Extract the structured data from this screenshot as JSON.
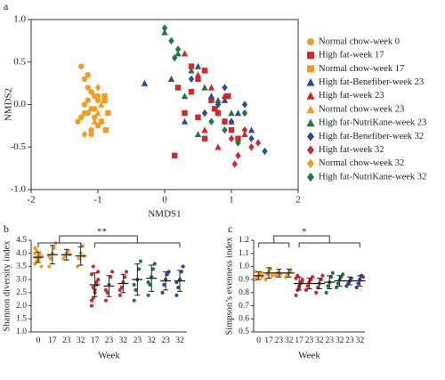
{
  "chart_data": [
    {
      "type": "scatter",
      "panel_label": "a",
      "x_label": "NMDS1",
      "y_label": "NMDS2",
      "xlim": [
        -2,
        2
      ],
      "xticks": [
        -2,
        -1,
        0,
        1,
        2
      ],
      "ylim": [
        -1,
        1
      ],
      "yticks": [
        {
          "value": -1,
          "label": "-1.0"
        },
        -0.5,
        {
          "value": 0,
          "label": "0.0"
        },
        0.5,
        {
          "value": 1,
          "label": "1.0"
        }
      ],
      "legend": "right",
      "series": [
        {
          "name": "Normal chow-week 0",
          "color": "#f39c1f",
          "marker": "circle",
          "x": [
            -1.25,
            -1.2,
            -1.15,
            -1.1,
            -1.05,
            -1.0,
            -1.2,
            -1.1,
            -1.15,
            -1.05,
            -1.3,
            -1.0,
            -1.1,
            -1.2,
            -1.15,
            -1.05,
            -1.25,
            -1.1,
            -1.0,
            -1.15
          ],
          "y": [
            0.45,
            0.3,
            0.2,
            0.15,
            0.1,
            0.05,
            0.0,
            -0.05,
            -0.1,
            -0.15,
            -0.2,
            -0.25,
            -0.3,
            -0.1,
            0.05,
            -0.05,
            -0.15,
            -0.35,
            0.1,
            0.35
          ]
        },
        {
          "name": "High fat-week 17",
          "color": "#d7262b",
          "marker": "square",
          "x": [
            0.2,
            0.4,
            0.5,
            0.6,
            0.7,
            0.8,
            0.9,
            1.0,
            1.1,
            0.3,
            0.5,
            0.75,
            0.95,
            0.4,
            0.15,
            0.6
          ],
          "y": [
            0.2,
            0.15,
            0.3,
            0.4,
            0.05,
            -0.1,
            -0.2,
            -0.3,
            -0.4,
            -0.1,
            -0.15,
            -0.05,
            0.1,
            0.45,
            -0.6,
            -0.4
          ]
        },
        {
          "name": "Normal chow-week 17",
          "color": "#f39c1f",
          "marker": "square",
          "x": [
            -0.9,
            -0.85,
            -0.95,
            -0.9,
            -0.88
          ],
          "y": [
            0.05,
            -0.1,
            -0.2,
            0.1,
            -0.3
          ]
        },
        {
          "name": "High fat-Benefiber-week 23",
          "color": "#2e4b9b",
          "marker": "triangle",
          "x": [
            -0.3,
            0.1,
            0.3,
            0.7,
            0.9,
            1.1,
            0.5,
            1.3
          ],
          "y": [
            0.25,
            0.3,
            -0.2,
            0.1,
            0.05,
            -0.1,
            0.45,
            -0.3
          ]
        },
        {
          "name": "High fat-week 23",
          "color": "#d7262b",
          "marker": "triangle",
          "x": [
            0.3,
            0.5,
            0.7,
            0.9,
            1.0,
            1.2,
            0.6,
            0.8
          ],
          "y": [
            0.6,
            0.35,
            0.2,
            0.1,
            -0.2,
            -0.35,
            -0.3,
            -0.5
          ]
        },
        {
          "name": "Normal chow-week 23",
          "color": "#f39c1f",
          "marker": "triangle",
          "x": [
            -1.0,
            -0.95,
            -1.05
          ],
          "y": [
            -0.1,
            0.0,
            -0.2
          ]
        },
        {
          "name": "High fat-NutriKane-week 23",
          "color": "#1b7a3d",
          "marker": "triangle",
          "x": [
            0.0,
            0.2,
            0.4,
            0.6,
            0.8,
            1.0,
            0.5,
            0.3
          ],
          "y": [
            0.85,
            0.6,
            0.4,
            0.2,
            0.05,
            -0.1,
            -0.35,
            0.1
          ]
        },
        {
          "name": "High fat-Benefiber-week 32",
          "color": "#2e4b9b",
          "marker": "diamond",
          "x": [
            0.4,
            0.6,
            0.8,
            1.0,
            1.2,
            1.3,
            0.9,
            1.5
          ],
          "y": [
            0.3,
            -0.1,
            0.0,
            -0.2,
            0.0,
            -0.4,
            0.2,
            -0.55
          ]
        },
        {
          "name": "High fat-week 32",
          "color": "#d7262b",
          "marker": "diamond",
          "x": [
            0.8,
            1.0,
            1.1,
            1.2,
            1.3,
            0.9,
            1.05,
            1.4
          ],
          "y": [
            -0.1,
            -0.4,
            -0.6,
            -0.3,
            -0.5,
            -0.2,
            -0.7,
            -0.45
          ]
        },
        {
          "name": "Normal chow-week 32",
          "color": "#f39c1f",
          "marker": "diamond",
          "x": [
            -1.2,
            -1.1,
            -1.0
          ],
          "y": [
            -0.35,
            -0.3,
            0.2
          ]
        },
        {
          "name": "High fat-NutriKane-week 32",
          "color": "#1b7a3d",
          "marker": "diamond",
          "x": [
            0.0,
            0.1,
            0.2,
            0.15,
            0.9,
            1.1,
            0.7,
            1.2
          ],
          "y": [
            0.9,
            0.75,
            0.65,
            0.55,
            -0.3,
            -0.45,
            -0.2,
            -0.1
          ]
        }
      ]
    },
    {
      "type": "dot",
      "panel_label": "b",
      "x_label": "Week",
      "y_label": "Shannon diversity index",
      "annotation": "**",
      "ylim": [
        1,
        4.5
      ],
      "yticks": [
        {
          "value": 1,
          "label": "1.0"
        },
        1.5,
        {
          "value": 2,
          "label": "2.0"
        },
        2.5,
        {
          "value": 3,
          "label": "3.0"
        },
        3.5,
        {
          "value": 4,
          "label": "4.0"
        },
        4.5
      ],
      "categories": [
        "0",
        "17",
        "23",
        "32",
        "17",
        "23",
        "32",
        "23",
        "32",
        "23",
        "32"
      ],
      "colors": [
        "#f39c1f",
        "#f39c1f",
        "#f39c1f",
        "#f39c1f",
        "#d7262b",
        "#d7262b",
        "#d7262b",
        "#1b7a3d",
        "#1b7a3d",
        "#2e4b9b",
        "#2e4b9b"
      ],
      "points": [
        [
          3.6,
          3.7,
          3.8,
          3.85,
          3.9,
          4.0,
          4.1,
          3.75,
          3.95,
          3.5,
          4.2,
          3.85
        ],
        [
          3.5,
          3.8,
          4.0,
          4.2,
          4.4,
          3.9
        ],
        [
          3.8,
          3.9,
          4.0,
          4.1,
          3.95
        ],
        [
          3.5,
          3.8,
          4.0,
          4.3,
          3.9
        ],
        [
          2.0,
          2.3,
          2.6,
          2.8,
          3.0,
          3.2,
          3.5,
          2.5,
          2.9,
          3.3,
          2.2,
          2.7
        ],
        [
          2.2,
          2.5,
          2.8,
          3.1,
          3.3,
          2.6
        ],
        [
          2.4,
          2.7,
          2.9,
          3.1,
          3.3,
          2.6
        ],
        [
          2.2,
          2.6,
          3.0,
          3.4,
          3.7,
          2.8
        ],
        [
          2.4,
          2.8,
          3.1,
          3.4,
          3.6,
          2.9
        ],
        [
          2.5,
          2.8,
          3.0,
          3.2,
          3.3
        ],
        [
          2.4,
          2.7,
          3.0,
          3.3,
          3.5,
          2.9
        ]
      ],
      "means": [
        3.85,
        3.95,
        3.95,
        3.9,
        2.8,
        2.75,
        2.85,
        3.0,
        3.05,
        2.95,
        2.95
      ],
      "sds": [
        0.2,
        0.35,
        0.2,
        0.35,
        0.45,
        0.4,
        0.35,
        0.6,
        0.5,
        0.35,
        0.4
      ]
    },
    {
      "type": "dot",
      "panel_label": "c",
      "x_label": "Week",
      "y_label": "Simpson’s evenness index",
      "annotation": "*",
      "ylim": [
        0.5,
        1.2
      ],
      "yticks": [
        0.5,
        0.6,
        0.7,
        0.8,
        0.9,
        {
          "value": 1,
          "label": "1.0"
        },
        1.1,
        1.2
      ],
      "categories": [
        "0",
        "17",
        "23",
        "32",
        "17",
        "23",
        "32",
        "23",
        "32",
        "23",
        "32"
      ],
      "colors": [
        "#f39c1f",
        "#f39c1f",
        "#f39c1f",
        "#f39c1f",
        "#d7262b",
        "#d7262b",
        "#d7262b",
        "#1b7a3d",
        "#1b7a3d",
        "#2e4b9b",
        "#2e4b9b"
      ],
      "points": [
        [
          0.9,
          0.92,
          0.93,
          0.94,
          0.95,
          0.96,
          0.91,
          0.93,
          0.95,
          0.92
        ],
        [
          0.9,
          0.94,
          0.96,
          0.98,
          0.93
        ],
        [
          0.93,
          0.95,
          0.96,
          0.94
        ],
        [
          0.92,
          0.94,
          0.96,
          0.97
        ],
        [
          0.78,
          0.82,
          0.85,
          0.87,
          0.89,
          0.91,
          0.93,
          0.84,
          0.88,
          0.9
        ],
        [
          0.82,
          0.85,
          0.88,
          0.9,
          0.92
        ],
        [
          0.8,
          0.84,
          0.87,
          0.9,
          0.93
        ],
        [
          0.8,
          0.85,
          0.88,
          0.92,
          0.95
        ],
        [
          0.84,
          0.87,
          0.9,
          0.92,
          0.94
        ],
        [
          0.85,
          0.87,
          0.89,
          0.91
        ],
        [
          0.84,
          0.87,
          0.9,
          0.93,
          0.92
        ]
      ],
      "means": [
        0.93,
        0.95,
        0.95,
        0.95,
        0.87,
        0.87,
        0.87,
        0.88,
        0.89,
        0.89,
        0.89
      ],
      "sds": [
        0.03,
        0.04,
        0.03,
        0.03,
        0.05,
        0.04,
        0.04,
        0.05,
        0.04,
        0.03,
        0.04
      ]
    }
  ]
}
